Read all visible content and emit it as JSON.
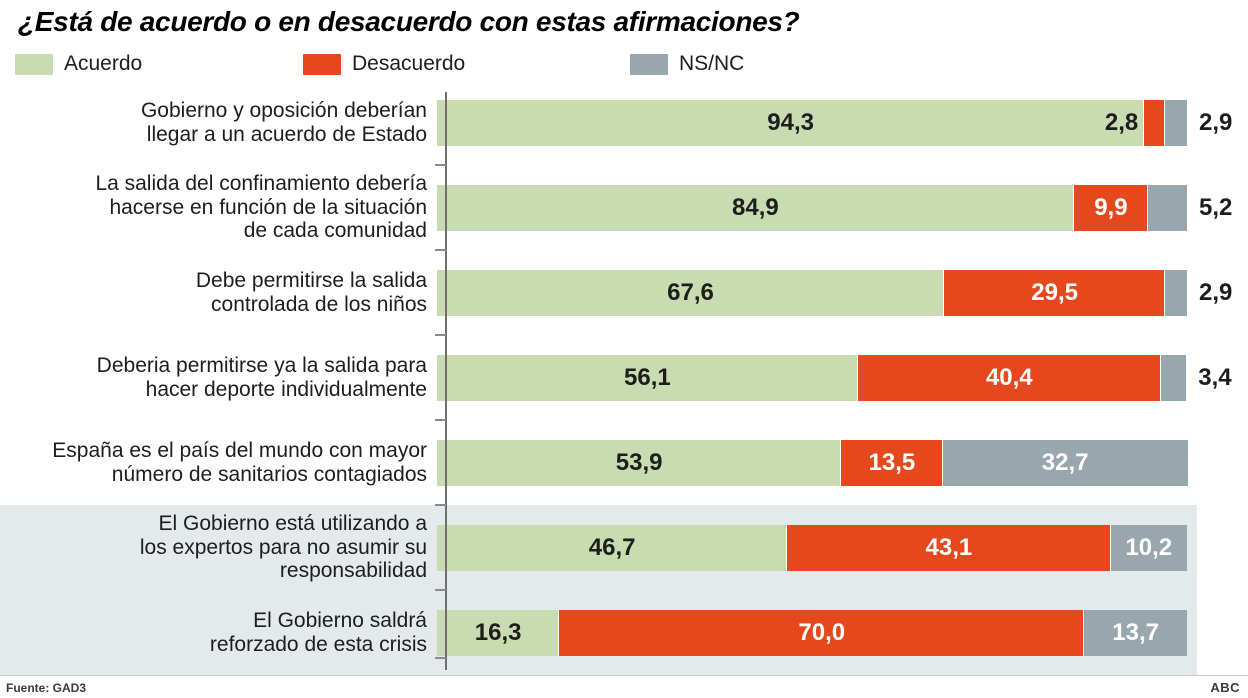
{
  "title": "¿Está de acuerdo o en desacuerdo con estas afirmaciones?",
  "footer": {
    "source": "Fuente: GAD3",
    "credit": "ABC"
  },
  "colors": {
    "background": "#ffffff",
    "highlight_bg": "#e4e9eb",
    "axis": "#6f6f6f",
    "text": "#1d1d1b"
  },
  "chart_data": {
    "type": "bar",
    "orientation": "horizontal",
    "stacked": true,
    "unit": "percent",
    "xlim": [
      0,
      100
    ],
    "legend_position": "top",
    "title": "¿Está de acuerdo o en desacuerdo con estas afirmaciones?",
    "categories": [
      "Gobierno y oposición deberían\nllegar a un acuerdo de Estado",
      "La salida del confinamiento debería\nhacerse en función de la situación\nde cada comunidad",
      "Debe permitirse la salida\ncontrolada de los niños",
      "Deberia permitirse ya la salida para\nhacer deporte individualmente",
      "España es el país del mundo con mayor\nnúmero de sanitarios contagiados",
      "El Gobierno está utilizando a\nlos expertos para no asumir su\nresponsabilidad",
      "El Gobierno saldrá\nreforzado de esta crisis"
    ],
    "series": [
      {
        "key": "acuerdo",
        "name": "Acuerdo",
        "color": "#c9dcb1",
        "text_color": "#1d1d1b",
        "values": [
          94.3,
          84.9,
          67.6,
          56.1,
          53.9,
          46.7,
          16.3
        ],
        "display": [
          "94,3",
          "84,9",
          "67,6",
          "56,1",
          "53,9",
          "46,7",
          "16,3"
        ]
      },
      {
        "key": "desacuerdo",
        "name": "Desacuerdo",
        "color": "#e5481d",
        "text_color": "#ffffff",
        "values": [
          2.8,
          9.9,
          29.5,
          40.4,
          13.5,
          43.1,
          70.0
        ],
        "display": [
          "2,8",
          "9,9",
          "29,5",
          "40,4",
          "13,5",
          "43,1",
          "70,0"
        ]
      },
      {
        "key": "nsnc",
        "name": "NS/NC",
        "color": "#98a6ae",
        "text_color": "#ffffff",
        "values": [
          2.9,
          5.2,
          2.9,
          3.4,
          32.7,
          10.2,
          13.7
        ],
        "display": [
          "2,9",
          "5,2",
          "2,9",
          "3,4",
          "32,7",
          "10,2",
          "13,7"
        ]
      }
    ],
    "label_placement": [
      [
        "inside",
        "before",
        "after"
      ],
      [
        "inside",
        "inside",
        "after"
      ],
      [
        "inside",
        "inside",
        "after"
      ],
      [
        "inside",
        "inside",
        "after"
      ],
      [
        "inside",
        "inside",
        "inside"
      ],
      [
        "inside",
        "inside",
        "inside"
      ],
      [
        "inside",
        "inside",
        "inside"
      ]
    ],
    "highlighted_categories": [
      5,
      6
    ]
  }
}
